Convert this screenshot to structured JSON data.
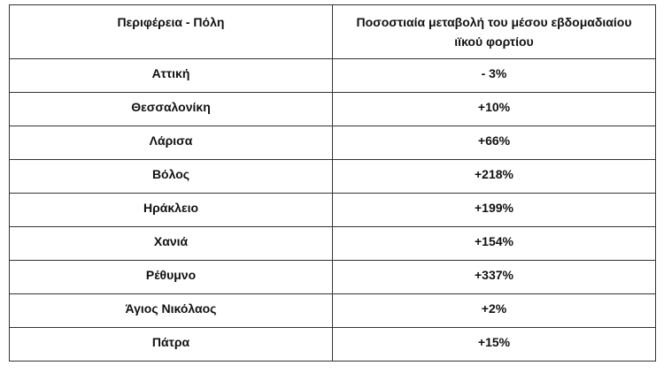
{
  "table": {
    "header": [
      "Περιφέρεια - Πόλη",
      "Ποσοστιαία μεταβολή του μέσου εβδομαδιαίου ιϊκού φορτίου"
    ],
    "rows": [
      [
        "Αττική",
        "- 3%"
      ],
      [
        "Θεσσαλονίκη",
        "+10%"
      ],
      [
        "Λάρισα",
        "+66%"
      ],
      [
        "Βόλος",
        "+218%"
      ],
      [
        "Ηράκλειο",
        "+199%"
      ],
      [
        "Χανιά",
        "+154%"
      ],
      [
        "Ρέθυμνο",
        "+337%"
      ],
      [
        "Άγιος Νικόλαος",
        "+2%"
      ],
      [
        "Πάτρα",
        "+15%"
      ]
    ]
  }
}
